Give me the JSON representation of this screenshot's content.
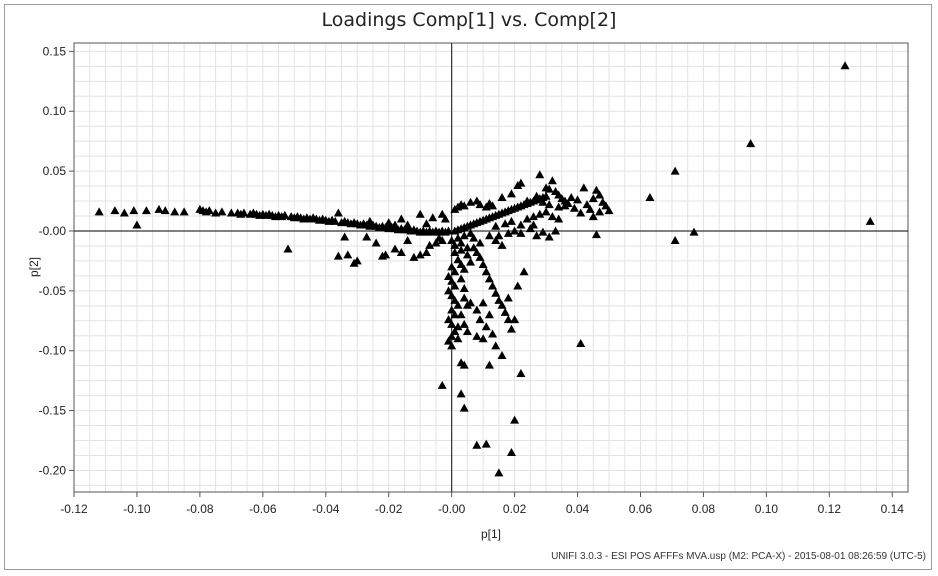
{
  "chart_data": {
    "type": "scatter",
    "title": "Loadings Comp[1] vs. Comp[2]",
    "xlabel": "p[1]",
    "ylabel": "p[2]",
    "xlim": [
      -0.12,
      0.145
    ],
    "ylim": [
      -0.218,
      0.157
    ],
    "xticks": [
      "-0.12",
      "-0.10",
      "-0.08",
      "-0.06",
      "-0.04",
      "-0.02",
      "-0.00",
      "0.02",
      "0.04",
      "0.06",
      "0.08",
      "0.10",
      "0.12",
      "0.14"
    ],
    "xtick_values": [
      -0.12,
      -0.1,
      -0.08,
      -0.06,
      -0.04,
      -0.02,
      0.0,
      0.02,
      0.04,
      0.06,
      0.08,
      0.1,
      0.12,
      0.14
    ],
    "yticks": [
      "0.15",
      "0.10",
      "0.05",
      "-0.00",
      "-0.05",
      "-0.10",
      "-0.15",
      "-0.20"
    ],
    "ytick_values": [
      0.15,
      0.1,
      0.05,
      0.0,
      -0.05,
      -0.1,
      -0.15,
      -0.2
    ],
    "grid": true,
    "marker": "triangle",
    "marker_color": "#000000",
    "grid_color": "#e3e3e3",
    "points": [
      [
        -0.112,
        0.016
      ],
      [
        -0.107,
        0.017
      ],
      [
        -0.104,
        0.015
      ],
      [
        -0.101,
        0.017
      ],
      [
        -0.1,
        0.005
      ],
      [
        -0.097,
        0.017
      ],
      [
        -0.093,
        0.018
      ],
      [
        -0.091,
        0.017
      ],
      [
        -0.088,
        0.016
      ],
      [
        -0.085,
        0.016
      ],
      [
        -0.08,
        0.018
      ],
      [
        -0.079,
        0.017
      ],
      [
        -0.078,
        0.016
      ],
      [
        -0.077,
        0.017
      ],
      [
        -0.075,
        0.015
      ],
      [
        -0.073,
        0.016
      ],
      [
        -0.07,
        0.015
      ],
      [
        -0.068,
        0.015
      ],
      [
        -0.067,
        0.014
      ],
      [
        -0.066,
        0.015
      ],
      [
        -0.064,
        0.014
      ],
      [
        -0.063,
        0.015
      ],
      [
        -0.062,
        0.014
      ],
      [
        -0.061,
        0.013
      ],
      [
        -0.06,
        0.014
      ],
      [
        -0.059,
        0.013
      ],
      [
        -0.058,
        0.014
      ],
      [
        -0.057,
        0.013
      ],
      [
        -0.056,
        0.012
      ],
      [
        -0.055,
        0.013
      ],
      [
        -0.054,
        0.012
      ],
      [
        -0.053,
        0.013
      ],
      [
        -0.052,
        -0.015
      ],
      [
        -0.051,
        0.012
      ],
      [
        -0.05,
        0.011
      ],
      [
        -0.049,
        0.012
      ],
      [
        -0.048,
        0.011
      ],
      [
        -0.047,
        0.01
      ],
      [
        -0.046,
        0.011
      ],
      [
        -0.045,
        0.01
      ],
      [
        -0.044,
        0.011
      ],
      [
        -0.043,
        0.01
      ],
      [
        -0.042,
        0.009
      ],
      [
        -0.041,
        0.01
      ],
      [
        -0.04,
        0.009
      ],
      [
        -0.039,
        0.008
      ],
      [
        -0.038,
        0.009
      ],
      [
        -0.037,
        0.008
      ],
      [
        -0.036,
        0.015
      ],
      [
        -0.035,
        0.007
      ],
      [
        -0.034,
        0.008
      ],
      [
        -0.033,
        0.007
      ],
      [
        -0.032,
        0.006
      ],
      [
        -0.031,
        0.007
      ],
      [
        -0.03,
        0.006
      ],
      [
        -0.029,
        0.005
      ],
      [
        -0.028,
        0.006
      ],
      [
        -0.027,
        0.005
      ],
      [
        -0.026,
        0.004
      ],
      [
        -0.025,
        0.005
      ],
      [
        -0.024,
        0.004
      ],
      [
        -0.023,
        0.003
      ],
      [
        -0.022,
        0.004
      ],
      [
        -0.021,
        0.003
      ],
      [
        -0.02,
        0.002
      ],
      [
        -0.019,
        0.003
      ],
      [
        -0.018,
        0.002
      ],
      [
        -0.017,
        0.001
      ],
      [
        -0.016,
        0.002
      ],
      [
        -0.015,
        0.001
      ],
      [
        -0.014,
        0.001
      ],
      [
        -0.013,
        0.0
      ],
      [
        -0.012,
        0.001
      ],
      [
        -0.011,
        0.0
      ],
      [
        -0.01,
        -0.001
      ],
      [
        -0.009,
        0.0
      ],
      [
        -0.008,
        -0.001
      ],
      [
        -0.007,
        0.0
      ],
      [
        -0.006,
        -0.001
      ],
      [
        -0.005,
        0.0
      ],
      [
        -0.004,
        -0.001
      ],
      [
        -0.003,
        0.0
      ],
      [
        -0.002,
        -0.001
      ],
      [
        -0.001,
        0.0
      ],
      [
        -0.033,
        -0.02
      ],
      [
        -0.031,
        -0.027
      ],
      [
        -0.03,
        -0.025
      ],
      [
        -0.034,
        -0.005
      ],
      [
        -0.027,
        -0.005
      ],
      [
        -0.036,
        -0.021
      ],
      [
        -0.024,
        -0.01
      ],
      [
        -0.022,
        -0.021
      ],
      [
        -0.021,
        -0.02
      ],
      [
        -0.018,
        -0.015
      ],
      [
        -0.016,
        -0.018
      ],
      [
        -0.014,
        -0.008
      ],
      [
        -0.012,
        -0.022
      ],
      [
        -0.01,
        -0.02
      ],
      [
        -0.008,
        -0.018
      ],
      [
        -0.007,
        -0.012
      ],
      [
        -0.005,
        -0.01
      ],
      [
        -0.004,
        -0.006
      ],
      [
        -0.003,
        -0.008
      ],
      [
        -0.026,
        0.008
      ],
      [
        -0.02,
        0.007
      ],
      [
        -0.016,
        0.01
      ],
      [
        -0.01,
        0.014
      ],
      [
        -0.006,
        0.011
      ],
      [
        -0.003,
        0.014
      ],
      [
        -0.002,
        0.01
      ],
      [
        -0.014,
        0.005
      ],
      [
        -0.008,
        0.006
      ],
      [
        -0.018,
        0.005
      ],
      [
        0.001,
        0.0
      ],
      [
        0.002,
        0.001
      ],
      [
        0.003,
        0.002
      ],
      [
        0.004,
        0.003
      ],
      [
        0.005,
        0.004
      ],
      [
        0.006,
        0.005
      ],
      [
        0.007,
        0.006
      ],
      [
        0.008,
        0.007
      ],
      [
        0.009,
        0.008
      ],
      [
        0.01,
        0.009
      ],
      [
        0.011,
        0.01
      ],
      [
        0.012,
        0.011
      ],
      [
        0.013,
        0.012
      ],
      [
        0.014,
        0.013
      ],
      [
        0.015,
        0.014
      ],
      [
        0.016,
        0.015
      ],
      [
        0.017,
        0.016
      ],
      [
        0.018,
        0.017
      ],
      [
        0.019,
        0.018
      ],
      [
        0.02,
        0.019
      ],
      [
        0.021,
        0.02
      ],
      [
        0.022,
        0.021
      ],
      [
        0.023,
        0.022
      ],
      [
        0.024,
        0.023
      ],
      [
        0.025,
        0.024
      ],
      [
        0.026,
        0.025
      ],
      [
        0.027,
        0.026
      ],
      [
        0.028,
        0.027
      ],
      [
        0.029,
        0.028
      ],
      [
        0.03,
        0.029
      ],
      [
        0.001,
        0.018
      ],
      [
        0.002,
        0.02
      ],
      [
        0.003,
        0.022
      ],
      [
        0.004,
        0.021
      ],
      [
        0.006,
        0.024
      ],
      [
        0.008,
        0.025
      ],
      [
        0.009,
        0.022
      ],
      [
        0.011,
        0.02
      ],
      [
        0.012,
        0.023
      ],
      [
        0.013,
        0.021
      ],
      [
        0.016,
        0.028
      ],
      [
        0.019,
        0.031
      ],
      [
        0.021,
        0.038
      ],
      [
        0.022,
        0.04
      ],
      [
        0.024,
        0.025
      ],
      [
        0.027,
        0.029
      ],
      [
        0.028,
        0.047
      ],
      [
        0.03,
        0.036
      ],
      [
        0.031,
        0.035
      ],
      [
        0.033,
        0.033
      ],
      [
        0.034,
        0.03
      ],
      [
        0.035,
        0.027
      ],
      [
        0.036,
        0.025
      ],
      [
        0.037,
        0.023
      ],
      [
        0.038,
        0.028
      ],
      [
        0.032,
        0.042
      ],
      [
        0.029,
        0.024
      ],
      [
        0.031,
        0.022
      ],
      [
        0.034,
        0.02
      ],
      [
        0.036,
        0.021
      ],
      [
        0.014,
        0.004
      ],
      [
        0.017,
        0.006
      ],
      [
        0.019,
        0.008
      ],
      [
        0.022,
        0.005
      ],
      [
        0.024,
        0.01
      ],
      [
        0.026,
        0.012
      ],
      [
        0.028,
        0.014
      ],
      [
        0.03,
        0.016
      ],
      [
        0.032,
        0.012
      ],
      [
        0.034,
        0.01
      ],
      [
        0.02,
        0.0
      ],
      [
        0.022,
        -0.002
      ],
      [
        0.025,
        0.002
      ],
      [
        0.027,
        -0.004
      ],
      [
        0.029,
        -0.001
      ],
      [
        0.031,
        -0.005
      ],
      [
        0.033,
        0.0
      ],
      [
        0.026,
        0.005
      ],
      [
        0.018,
        -0.002
      ],
      [
        0.015,
        -0.004
      ],
      [
        0.042,
        0.036
      ],
      [
        0.046,
        0.034
      ],
      [
        0.047,
        0.03
      ],
      [
        0.045,
        0.027
      ],
      [
        0.048,
        0.024
      ],
      [
        0.049,
        0.021
      ],
      [
        0.047,
        0.016
      ],
      [
        0.05,
        0.017
      ],
      [
        0.045,
        0.012
      ],
      [
        0.046,
        -0.003
      ],
      [
        0.043,
        0.022
      ],
      [
        0.044,
        0.018
      ],
      [
        0.04,
        0.026
      ],
      [
        0.039,
        0.019
      ],
      [
        0.041,
        0.015
      ],
      [
        0.063,
        0.028
      ],
      [
        0.071,
        0.05
      ],
      [
        0.071,
        -0.008
      ],
      [
        0.077,
        -0.001
      ],
      [
        0.095,
        0.073
      ],
      [
        0.125,
        0.138
      ],
      [
        0.133,
        0.008
      ],
      [
        0.041,
        -0.094
      ],
      [
        0.0,
        -0.008
      ],
      [
        0.001,
        -0.012
      ],
      [
        0.001,
        -0.018
      ],
      [
        0.002,
        -0.024
      ],
      [
        0.0,
        -0.03
      ],
      [
        0.001,
        -0.034
      ],
      [
        -0.001,
        -0.038
      ],
      [
        0.0,
        -0.042
      ],
      [
        0.001,
        -0.046
      ],
      [
        -0.001,
        -0.05
      ],
      [
        0.0,
        -0.054
      ],
      [
        0.001,
        -0.058
      ],
      [
        0.002,
        -0.062
      ],
      [
        0.0,
        -0.066
      ],
      [
        0.001,
        -0.07
      ],
      [
        -0.001,
        -0.074
      ],
      [
        0.0,
        -0.078
      ],
      [
        0.002,
        -0.08
      ],
      [
        0.001,
        -0.084
      ],
      [
        0.0,
        -0.088
      ],
      [
        -0.001,
        -0.092
      ],
      [
        0.0,
        -0.096
      ],
      [
        0.003,
        -0.04
      ],
      [
        0.004,
        -0.048
      ],
      [
        0.004,
        -0.056
      ],
      [
        0.005,
        -0.062
      ],
      [
        0.003,
        -0.07
      ],
      [
        0.004,
        -0.078
      ],
      [
        0.005,
        -0.084
      ],
      [
        0.002,
        -0.09
      ],
      [
        0.003,
        -0.028
      ],
      [
        0.004,
        -0.032
      ],
      [
        0.005,
        -0.02
      ],
      [
        0.006,
        -0.026
      ],
      [
        0.003,
        -0.016
      ],
      [
        0.007,
        -0.014
      ],
      [
        0.008,
        -0.018
      ],
      [
        0.009,
        -0.022
      ],
      [
        0.01,
        -0.028
      ],
      [
        0.011,
        -0.034
      ],
      [
        0.012,
        -0.04
      ],
      [
        0.013,
        -0.046
      ],
      [
        0.014,
        -0.052
      ],
      [
        0.015,
        -0.058
      ],
      [
        0.016,
        -0.062
      ],
      [
        0.017,
        -0.068
      ],
      [
        0.018,
        -0.074
      ],
      [
        0.019,
        -0.082
      ],
      [
        0.01,
        -0.06
      ],
      [
        0.012,
        -0.07
      ],
      [
        0.006,
        -0.06
      ],
      [
        0.008,
        -0.066
      ],
      [
        0.009,
        -0.074
      ],
      [
        0.011,
        -0.08
      ],
      [
        0.013,
        -0.086
      ],
      [
        0.014,
        -0.096
      ],
      [
        0.01,
        -0.09
      ],
      [
        0.008,
        -0.088
      ],
      [
        0.016,
        -0.104
      ],
      [
        0.003,
        -0.11
      ],
      [
        0.004,
        -0.112
      ],
      [
        0.012,
        -0.112
      ],
      [
        0.022,
        -0.119
      ],
      [
        -0.003,
        -0.129
      ],
      [
        0.003,
        -0.136
      ],
      [
        0.004,
        -0.148
      ],
      [
        0.02,
        -0.158
      ],
      [
        0.008,
        -0.179
      ],
      [
        0.011,
        -0.178
      ],
      [
        0.019,
        -0.185
      ],
      [
        0.015,
        -0.202
      ],
      [
        0.02,
        -0.074
      ],
      [
        0.018,
        -0.056
      ],
      [
        0.021,
        -0.046
      ],
      [
        0.023,
        -0.034
      ],
      [
        0.007,
        -0.006
      ],
      [
        0.009,
        -0.01
      ],
      [
        0.012,
        -0.004
      ],
      [
        0.014,
        -0.008
      ],
      [
        0.016,
        -0.012
      ],
      [
        0.006,
        -0.002
      ],
      [
        0.004,
        -0.004
      ],
      [
        0.003,
        -0.01
      ],
      [
        0.002,
        -0.006
      ],
      [
        0.005,
        -0.014
      ]
    ]
  },
  "footer": {
    "note": "UNIFI 3.0.3 - ESI POS AFFFs MVA.usp (M2: PCA-X) - 2015-08-01 08:26:59 (UTC-5)"
  }
}
